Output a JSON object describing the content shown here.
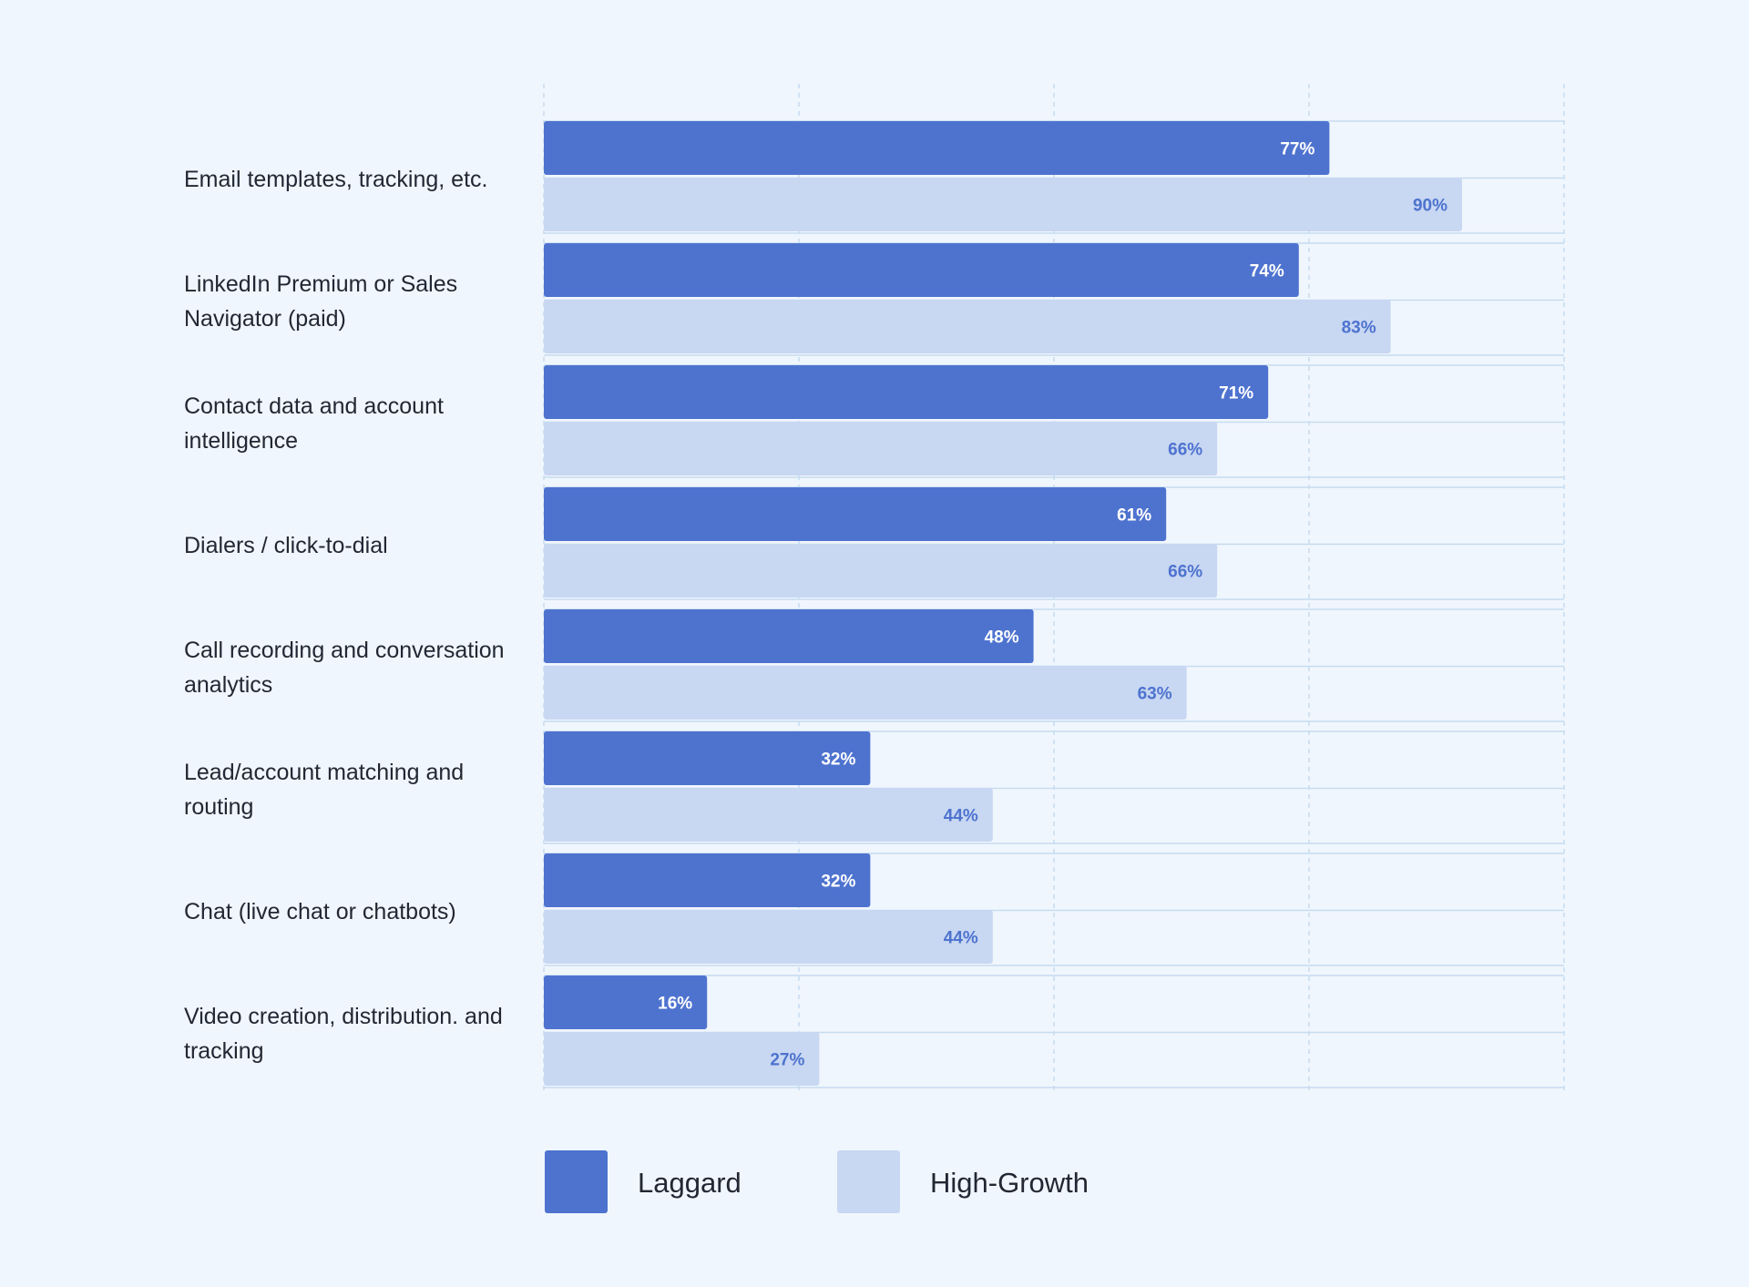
{
  "chart_data": {
    "type": "bar",
    "orientation": "horizontal",
    "categories": [
      "Email templates, tracking, etc.",
      "LinkedIn Premium or Sales Navigator (paid)",
      "Contact data and account intelligence",
      "Dialers / click-to-dial",
      "Call recording and conversation analytics",
      "Lead/account matching and routing",
      "Chat (live chat or chatbots)",
      "Video creation, distribution. and tracking"
    ],
    "series": [
      {
        "name": "Laggard",
        "color": "#4e73cf",
        "label_color": "#ffffff",
        "values": [
          77,
          74,
          71,
          61,
          48,
          32,
          32,
          16
        ],
        "labels": [
          "77%",
          "74%",
          "71%",
          "61%",
          "48%",
          "32%",
          "32%",
          "16%"
        ]
      },
      {
        "name": "High-Growth",
        "color": "#c8d7f2",
        "label_color": "#4e73cf",
        "values": [
          90,
          83,
          66,
          66,
          63,
          44,
          44,
          27
        ],
        "labels": [
          "90%",
          "83%",
          "66%",
          "66%",
          "63%",
          "44%",
          "44%",
          "27%"
        ]
      }
    ],
    "grid": true,
    "legend_position": "bottom-left",
    "unit": "%"
  },
  "colors": {
    "background": "#f0f6fd",
    "gridline": "#c6dcf0",
    "text": "#222833"
  }
}
